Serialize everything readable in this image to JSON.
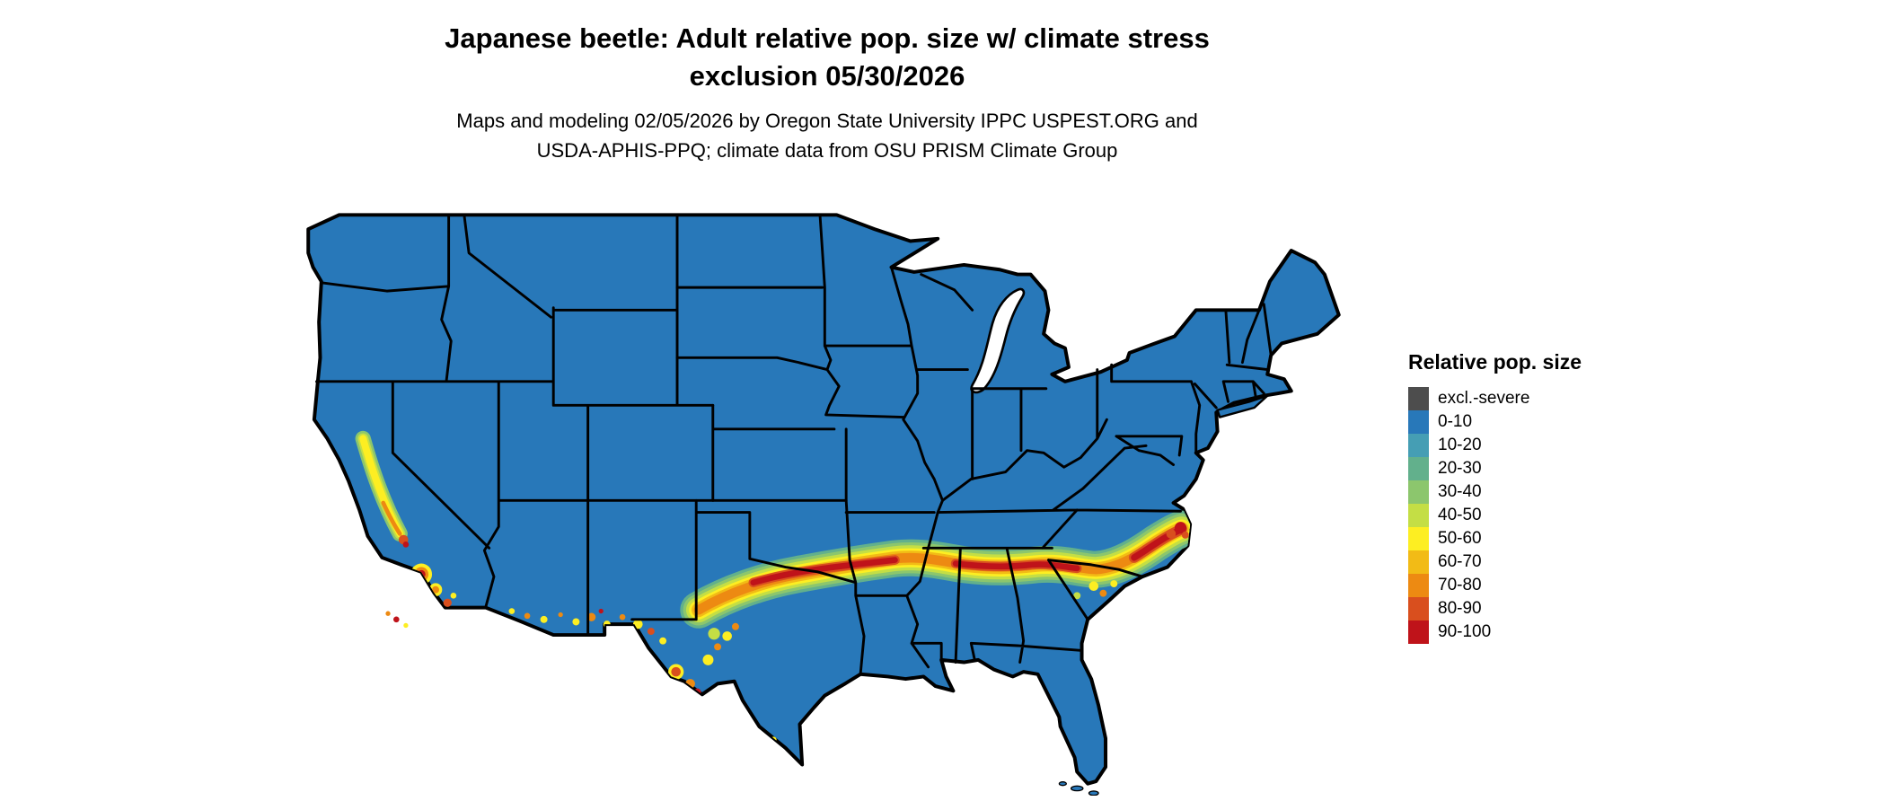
{
  "title": {
    "line1": "Japanese beetle: Adult relative pop. size w/ climate stress",
    "line2": "exclusion 05/30/2026"
  },
  "subtitle": {
    "line1": "Maps and modeling 02/05/2026 by Oregon State University IPPC USPEST.ORG and",
    "line2": "USDA-APHIS-PPQ; climate data from OSU PRISM Climate Group"
  },
  "legend": {
    "title": "Relative pop. size",
    "entries": [
      {
        "label": "excl.-severe",
        "color": "#4d4d4d"
      },
      {
        "label": "0-10",
        "color": "#2878b9"
      },
      {
        "label": "10-20",
        "color": "#459eb4"
      },
      {
        "label": "20-30",
        "color": "#62b08c"
      },
      {
        "label": "30-40",
        "color": "#8cc66d"
      },
      {
        "label": "40-50",
        "color": "#c4de45"
      },
      {
        "label": "50-60",
        "color": "#fdee22"
      },
      {
        "label": "60-70",
        "color": "#f2bb16"
      },
      {
        "label": "70-80",
        "color": "#ed8a12"
      },
      {
        "label": "80-90",
        "color": "#d94f1e"
      },
      {
        "label": "90-100",
        "color": "#bf131a"
      }
    ]
  },
  "map": {
    "border_color": "#000000",
    "background_color": "#ffffff",
    "description": "Contiguous United States raster map; most of country shown in 0-10 blue",
    "hotspots": [
      "southern band from west Texas through Oklahoma/Arkansas and the Deep South to coastal North Carolina",
      "California Central Valley",
      "southern California coast",
      "scattered southern Arizona / New Mexico patches",
      "Big Bend Texas patches"
    ]
  }
}
